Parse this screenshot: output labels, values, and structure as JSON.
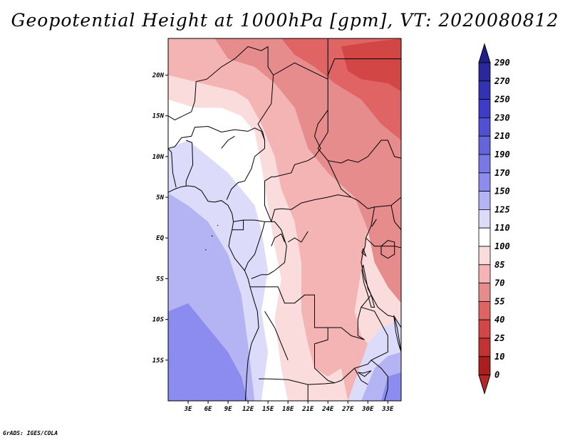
{
  "title": "Geopotential Height at 1000hPa [gpm], VT: 2020080812",
  "credit": "GrADS: IGES/COLA",
  "map": {
    "lon_range": [
      0,
      35
    ],
    "lat_range": [
      -20,
      24.5
    ],
    "lat_ticks": [
      {
        "value": 20,
        "label": "20N"
      },
      {
        "value": 15,
        "label": "15N"
      },
      {
        "value": 10,
        "label": "10N"
      },
      {
        "value": 5,
        "label": "5N"
      },
      {
        "value": 0,
        "label": "EQ"
      },
      {
        "value": -5,
        "label": "5S"
      },
      {
        "value": -10,
        "label": "10S"
      },
      {
        "value": -15,
        "label": "15S"
      }
    ],
    "lon_ticks": [
      {
        "value": 3,
        "label": "3E"
      },
      {
        "value": 6,
        "label": "6E"
      },
      {
        "value": 9,
        "label": "9E"
      },
      {
        "value": 12,
        "label": "12E"
      },
      {
        "value": 15,
        "label": "15E"
      },
      {
        "value": 18,
        "label": "18E"
      },
      {
        "value": 21,
        "label": "21E"
      },
      {
        "value": 24,
        "label": "24E"
      },
      {
        "value": 27,
        "label": "27E"
      },
      {
        "value": 30,
        "label": "30E"
      },
      {
        "value": 33,
        "label": "33E"
      }
    ]
  },
  "colorbar": {
    "labels": [
      "290",
      "270",
      "250",
      "230",
      "210",
      "190",
      "170",
      "150",
      "125",
      "110",
      "100",
      "85",
      "70",
      "55",
      "40",
      "25",
      "10",
      "0"
    ],
    "colors": [
      "#28289c",
      "#3232b4",
      "#3c3cc8",
      "#5050d2",
      "#6464dc",
      "#7878e6",
      "#8c8cf0",
      "#b4b4f5",
      "#dcdcfa",
      "#ffffff",
      "#fadcdc",
      "#f5b4b4",
      "#e68c8c",
      "#e06464",
      "#d24646",
      "#c33232",
      "#aa1e1e"
    ],
    "top_color": "#1e1e8c",
    "bottom_color": "#b42828"
  },
  "field_regions": [
    {
      "name": "southwest-ocean-deep",
      "color": "#8c8cf0",
      "lonlat": [
        [
          0,
          -20
        ],
        [
          0,
          -9
        ],
        [
          3,
          -8
        ],
        [
          6,
          -11
        ],
        [
          9,
          -14
        ],
        [
          11,
          -17
        ],
        [
          12,
          -20
        ]
      ]
    },
    {
      "name": "southwest-ocean-mid",
      "color": "#b4b4f5",
      "lonlat": [
        [
          0,
          -9
        ],
        [
          0,
          5.5
        ],
        [
          3,
          4
        ],
        [
          6,
          2
        ],
        [
          9,
          -2
        ],
        [
          11,
          -7
        ],
        [
          12,
          -13
        ],
        [
          13,
          -20
        ],
        [
          12,
          -20
        ],
        [
          11,
          -17
        ],
        [
          9,
          -14
        ],
        [
          6,
          -11
        ],
        [
          3,
          -8
        ]
      ]
    },
    {
      "name": "west-coast-light",
      "color": "#dcdcfa",
      "lonlat": [
        [
          0,
          5.5
        ],
        [
          0,
          11
        ],
        [
          3,
          12
        ],
        [
          6,
          10
        ],
        [
          9,
          8
        ],
        [
          11,
          6
        ],
        [
          13,
          4
        ],
        [
          14,
          1
        ],
        [
          15,
          -4
        ],
        [
          14,
          -9
        ],
        [
          15,
          -14
        ],
        [
          14,
          -20
        ],
        [
          13,
          -20
        ],
        [
          12,
          -13
        ],
        [
          11,
          -7
        ],
        [
          9,
          -2
        ],
        [
          6,
          2
        ],
        [
          3,
          4
        ]
      ]
    },
    {
      "name": "sahel-white",
      "color": "#ffffff",
      "lonlat": [
        [
          0,
          11
        ],
        [
          0,
          17
        ],
        [
          4,
          16
        ],
        [
          8,
          16
        ],
        [
          11,
          15
        ],
        [
          13,
          13
        ],
        [
          14,
          9
        ],
        [
          15,
          4
        ],
        [
          16,
          -1
        ],
        [
          17,
          -5
        ],
        [
          16,
          -10
        ],
        [
          17,
          -16
        ],
        [
          18,
          -20
        ],
        [
          14,
          -20
        ],
        [
          15,
          -14
        ],
        [
          14,
          -9
        ],
        [
          15,
          -4
        ],
        [
          14,
          1
        ],
        [
          13,
          4
        ],
        [
          11,
          6
        ],
        [
          9,
          8
        ],
        [
          6,
          10
        ],
        [
          3,
          12
        ]
      ]
    },
    {
      "name": "central-light-pink",
      "color": "#fadcdc",
      "lonlat": [
        [
          0,
          17
        ],
        [
          0,
          20
        ],
        [
          5,
          19
        ],
        [
          10,
          18
        ],
        [
          12,
          17
        ],
        [
          14,
          14
        ],
        [
          16,
          10
        ],
        [
          17,
          6
        ],
        [
          19,
          2
        ],
        [
          20,
          -3
        ],
        [
          20,
          -9
        ],
        [
          21,
          -13
        ],
        [
          22,
          -16
        ],
        [
          24,
          -17
        ],
        [
          26,
          -16
        ],
        [
          27,
          -20
        ],
        [
          18,
          -20
        ],
        [
          17,
          -16
        ],
        [
          16,
          -10
        ],
        [
          17,
          -5
        ],
        [
          16,
          -1
        ],
        [
          15,
          4
        ],
        [
          14,
          9
        ],
        [
          13,
          13
        ],
        [
          11,
          15
        ],
        [
          8,
          16
        ],
        [
          4,
          16
        ]
      ]
    },
    {
      "name": "north-pink",
      "color": "#f5b4b4",
      "lonlat": [
        [
          0,
          20
        ],
        [
          0,
          24.5
        ],
        [
          7,
          24.5
        ],
        [
          9,
          22
        ],
        [
          13,
          21
        ],
        [
          16,
          19
        ],
        [
          19,
          16
        ],
        [
          21,
          11
        ],
        [
          24,
          8
        ],
        [
          28,
          5
        ],
        [
          30,
          1
        ],
        [
          29,
          -4
        ],
        [
          28,
          -9
        ],
        [
          29,
          -12
        ],
        [
          30,
          -13
        ],
        [
          27,
          -20
        ],
        [
          26,
          -16
        ],
        [
          24,
          -17
        ],
        [
          22,
          -16
        ],
        [
          21,
          -13
        ],
        [
          20,
          -9
        ],
        [
          20,
          -3
        ],
        [
          19,
          2
        ],
        [
          17,
          6
        ],
        [
          16,
          10
        ],
        [
          14,
          14
        ],
        [
          12,
          17
        ],
        [
          10,
          18
        ],
        [
          5,
          19
        ]
      ]
    },
    {
      "name": "northeast-salmon",
      "color": "#e68c8c",
      "lonlat": [
        [
          7,
          24.5
        ],
        [
          35,
          24.5
        ],
        [
          35,
          -8
        ],
        [
          33,
          -6
        ],
        [
          31,
          -3
        ],
        [
          30,
          1
        ],
        [
          28,
          5
        ],
        [
          24,
          8
        ],
        [
          21,
          11
        ],
        [
          19,
          16
        ],
        [
          16,
          19
        ],
        [
          13,
          21
        ],
        [
          9,
          22
        ]
      ]
    },
    {
      "name": "northeast-red",
      "color": "#e06464",
      "lonlat": [
        [
          17,
          24.5
        ],
        [
          35,
          24.5
        ],
        [
          35,
          12
        ],
        [
          32,
          14
        ],
        [
          29,
          17
        ],
        [
          25,
          19
        ],
        [
          22,
          21
        ],
        [
          19,
          22.5
        ]
      ]
    },
    {
      "name": "northeast-deep-red",
      "color": "#d24646",
      "lonlat": [
        [
          26,
          23.5
        ],
        [
          30,
          24
        ],
        [
          35,
          24.5
        ],
        [
          35,
          18
        ],
        [
          33,
          19
        ],
        [
          29,
          19.5
        ],
        [
          27,
          20.5
        ]
      ]
    },
    {
      "name": "southeast-light-blue",
      "color": "#dcdcfa",
      "lonlat": [
        [
          27,
          -20
        ],
        [
          30,
          -13
        ],
        [
          32,
          -11
        ],
        [
          35,
          -10
        ],
        [
          35,
          -20
        ]
      ]
    },
    {
      "name": "southeast-mid-blue",
      "color": "#b4b4f5",
      "lonlat": [
        [
          29,
          -20
        ],
        [
          31,
          -16
        ],
        [
          33,
          -14.5
        ],
        [
          35,
          -14
        ],
        [
          35,
          -20
        ]
      ]
    },
    {
      "name": "southeast-blue",
      "color": "#8c8cf0",
      "lonlat": [
        [
          32,
          -20
        ],
        [
          33,
          -17
        ],
        [
          35,
          -16.5
        ],
        [
          35,
          -20
        ]
      ]
    }
  ]
}
